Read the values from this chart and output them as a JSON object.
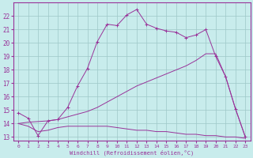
{
  "xlabel": "Windchill (Refroidissement éolien,°C)",
  "background_color": "#c8ecec",
  "grid_color": "#9ec8c8",
  "line_color": "#993399",
  "xlim": [
    -0.5,
    23.5
  ],
  "ylim": [
    12.7,
    23.0
  ],
  "x_ticks": [
    0,
    1,
    2,
    3,
    4,
    5,
    6,
    7,
    8,
    9,
    10,
    11,
    12,
    13,
    14,
    15,
    16,
    17,
    18,
    19,
    20,
    21,
    22,
    23
  ],
  "y_ticks": [
    13,
    14,
    15,
    16,
    17,
    18,
    19,
    20,
    21,
    22
  ],
  "line1_x": [
    0,
    1,
    2,
    3,
    4,
    5,
    6,
    7,
    8,
    9,
    10,
    11,
    12,
    13,
    14,
    15,
    16,
    17,
    18,
    19,
    20,
    21,
    22,
    23
  ],
  "line1_y": [
    14.8,
    14.4,
    13.1,
    14.2,
    14.3,
    15.2,
    16.8,
    18.1,
    20.1,
    21.4,
    21.3,
    22.1,
    22.5,
    21.4,
    21.1,
    20.9,
    20.8,
    20.4,
    20.6,
    21.0,
    19.0,
    17.5,
    15.1,
    13.0
  ],
  "line2_x": [
    0,
    1,
    2,
    3,
    4,
    5,
    6,
    7,
    8,
    9,
    10,
    11,
    12,
    13,
    14,
    15,
    16,
    17,
    18,
    19,
    20,
    21,
    22,
    23
  ],
  "line2_y": [
    14.0,
    14.1,
    14.15,
    14.2,
    14.3,
    14.5,
    14.7,
    14.9,
    15.2,
    15.6,
    16.0,
    16.4,
    16.8,
    17.1,
    17.4,
    17.7,
    18.0,
    18.3,
    18.7,
    19.2,
    19.2,
    17.5,
    15.1,
    13.0
  ],
  "line3_x": [
    0,
    1,
    2,
    3,
    4,
    5,
    6,
    7,
    8,
    9,
    10,
    11,
    12,
    13,
    14,
    15,
    16,
    17,
    18,
    19,
    20,
    21,
    22,
    23
  ],
  "line3_y": [
    14.0,
    13.8,
    13.4,
    13.5,
    13.7,
    13.8,
    13.8,
    13.8,
    13.8,
    13.8,
    13.7,
    13.6,
    13.5,
    13.5,
    13.4,
    13.4,
    13.3,
    13.2,
    13.2,
    13.1,
    13.1,
    13.0,
    13.0,
    12.9
  ]
}
